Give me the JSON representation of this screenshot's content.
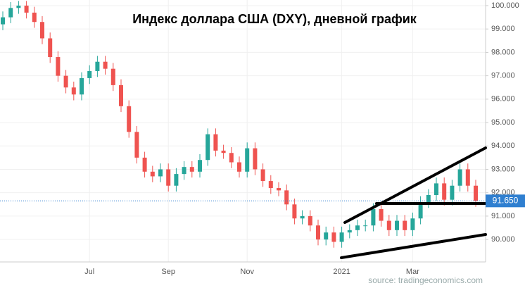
{
  "chart_data": {
    "type": "candlestick",
    "title": "Индекс доллара США (DXY), дневной график",
    "source": "source: tradingeconomics.com",
    "categories": [
      null,
      null,
      null,
      null,
      null,
      null,
      null,
      null,
      null,
      null,
      null,
      "Jul",
      null,
      null,
      null,
      null,
      null,
      null,
      null,
      null,
      null,
      "Sep",
      null,
      null,
      null,
      null,
      null,
      null,
      null,
      null,
      null,
      "Nov",
      null,
      null,
      null,
      null,
      null,
      null,
      null,
      null,
      null,
      null,
      null,
      "2021",
      null,
      null,
      null,
      null,
      null,
      null,
      null,
      null,
      "Mar",
      null,
      null,
      null,
      null,
      null,
      null,
      null,
      null
    ],
    "open": [
      99.2,
      99.5,
      99.9,
      100.0,
      99.7,
      99.3,
      98.6,
      97.8,
      97.0,
      96.5,
      96.2,
      96.9,
      97.2,
      97.6,
      97.3,
      96.6,
      95.7,
      94.6,
      93.5,
      92.9,
      92.7,
      93.0,
      92.3,
      92.8,
      93.1,
      92.9,
      93.4,
      94.5,
      93.8,
      93.7,
      93.3,
      92.9,
      93.9,
      93.0,
      92.5,
      92.2,
      92.1,
      91.5,
      90.9,
      91.0,
      90.6,
      90.0,
      90.3,
      89.9,
      90.3,
      90.4,
      90.6,
      90.6,
      91.3,
      90.8,
      90.4,
      90.8,
      90.4,
      90.9,
      91.6,
      91.9,
      92.4,
      91.7,
      92.3,
      93.0,
      92.3
    ],
    "high": [
      99.75,
      100.15,
      100.2,
      100.2,
      99.95,
      99.55,
      98.85,
      98.05,
      97.25,
      96.75,
      97.15,
      97.45,
      97.85,
      97.85,
      97.55,
      96.85,
      95.95,
      94.85,
      93.75,
      93.15,
      93.25,
      93.25,
      93.05,
      93.35,
      93.35,
      93.65,
      94.75,
      94.75,
      94.05,
      93.95,
      93.55,
      94.15,
      94.15,
      93.25,
      92.75,
      92.45,
      92.35,
      91.75,
      91.25,
      91.25,
      90.85,
      90.55,
      90.55,
      90.55,
      90.65,
      90.85,
      90.85,
      91.55,
      91.55,
      91.05,
      91.05,
      91.05,
      91.15,
      91.85,
      92.15,
      92.65,
      92.65,
      92.55,
      93.25,
      93.25,
      92.55
    ],
    "low": [
      98.95,
      99.25,
      99.65,
      99.45,
      99.05,
      98.35,
      97.55,
      96.75,
      96.25,
      95.95,
      95.95,
      96.65,
      96.95,
      97.05,
      96.35,
      95.45,
      94.35,
      93.25,
      92.65,
      92.45,
      92.45,
      92.05,
      92.05,
      92.55,
      92.65,
      92.65,
      93.15,
      93.55,
      93.45,
      93.05,
      92.65,
      92.65,
      92.75,
      92.25,
      91.95,
      91.85,
      91.25,
      90.65,
      90.65,
      90.35,
      89.75,
      89.75,
      89.65,
      89.65,
      90.05,
      90.15,
      90.35,
      90.35,
      90.55,
      90.15,
      90.15,
      90.15,
      90.15,
      90.65,
      91.35,
      91.65,
      91.45,
      91.45,
      92.05,
      92.05,
      91.4
    ],
    "close": [
      99.5,
      99.9,
      100.0,
      99.7,
      99.3,
      98.6,
      97.8,
      97.0,
      96.5,
      96.2,
      96.9,
      97.2,
      97.6,
      97.3,
      96.6,
      95.7,
      94.6,
      93.5,
      92.9,
      92.7,
      93.0,
      92.3,
      92.8,
      93.1,
      92.9,
      93.4,
      94.5,
      93.8,
      93.7,
      93.3,
      92.9,
      93.9,
      93.0,
      92.5,
      92.2,
      92.1,
      91.5,
      90.9,
      91.0,
      90.6,
      90.0,
      90.3,
      89.9,
      90.3,
      90.4,
      90.6,
      90.6,
      91.3,
      90.8,
      90.4,
      90.8,
      90.4,
      90.9,
      91.6,
      91.9,
      92.4,
      91.7,
      92.3,
      93.0,
      92.3,
      91.65
    ],
    "up_color": "#26a69a",
    "down_color": "#ef5350",
    "last_price": {
      "value": 91.65,
      "label": "91.650"
    },
    "last_price_color": "#2f7fd0",
    "ylim": [
      89.04,
      100.24
    ],
    "yticks": [
      {
        "value": 90,
        "label": "90.000"
      },
      {
        "value": 91,
        "label": "91.000"
      },
      {
        "value": 92,
        "label": "92.000"
      },
      {
        "value": 93,
        "label": "93.000"
      },
      {
        "value": 94,
        "label": "94.000"
      },
      {
        "value": 95,
        "label": "95.000"
      },
      {
        "value": 96,
        "label": "96.000"
      },
      {
        "value": 97,
        "label": "97.000"
      },
      {
        "value": 98,
        "label": "98.000"
      },
      {
        "value": 99,
        "label": "99.000"
      },
      {
        "value": 100,
        "label": "100.000"
      }
    ],
    "grid": true
  }
}
